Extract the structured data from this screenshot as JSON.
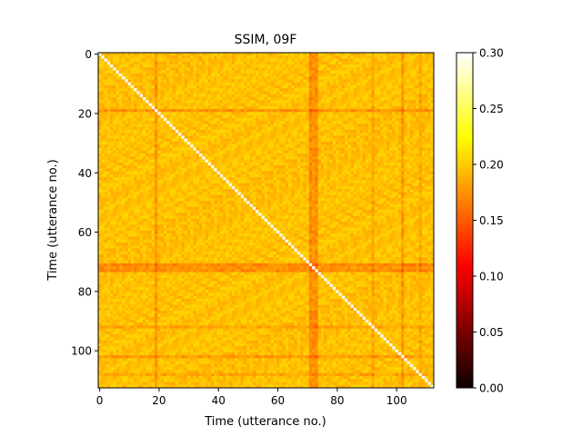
{
  "chart_data": {
    "type": "heatmap",
    "title": "SSIM, 09F",
    "xlabel": "Time (utterance no.)",
    "ylabel": "Time (utterance no.)",
    "n": 113,
    "x_ticks": [
      0,
      20,
      40,
      60,
      80,
      100
    ],
    "y_ticks": [
      0,
      20,
      40,
      60,
      80,
      100
    ],
    "y_inverted": true,
    "colormap": "hot",
    "colorbar": {
      "vmin": 0.0,
      "vmax": 0.3,
      "ticks": [
        "0.00",
        "0.05",
        "0.10",
        "0.15",
        "0.20",
        "0.25",
        "0.30"
      ]
    },
    "diagonal_value": 0.3,
    "typical_value": 0.195,
    "lower_value_rows_cols": [
      {
        "index": 19,
        "value": 0.175
      },
      {
        "index": 71,
        "value": 0.17
      },
      {
        "index": 72,
        "value": 0.175
      },
      {
        "index": 73,
        "value": 0.172
      },
      {
        "index": 92,
        "value": 0.182
      },
      {
        "index": 102,
        "value": 0.178
      },
      {
        "index": 108,
        "value": 0.183
      }
    ]
  }
}
